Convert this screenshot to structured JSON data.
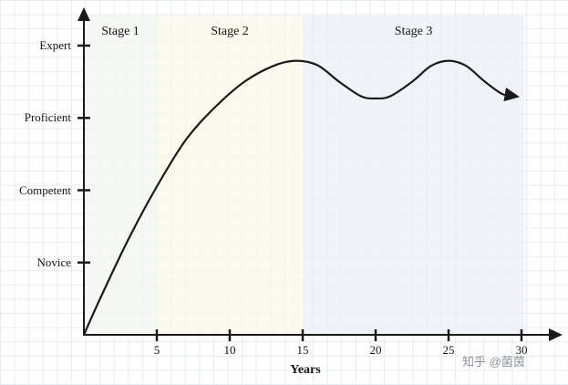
{
  "chart_data": {
    "type": "line",
    "xlabel": "Years",
    "ylabel": "",
    "xlim": [
      0,
      32.5
    ],
    "ylim": [
      0,
      4.5
    ],
    "grid": true,
    "legend": "none",
    "x_ticks": [
      5,
      10,
      15,
      20,
      25,
      30
    ],
    "y_level_labels": [
      {
        "label": "Novice",
        "value": 1
      },
      {
        "label": "Competent",
        "value": 2
      },
      {
        "label": "Proficient",
        "value": 3
      },
      {
        "label": "Expert",
        "value": 4
      }
    ],
    "stages": [
      {
        "label": "Stage 1",
        "x_start": 0,
        "x_end": 5,
        "fill": "#f2f7ee"
      },
      {
        "label": "Stage 2",
        "x_start": 5,
        "x_end": 15,
        "fill": "#fdf7e8"
      },
      {
        "label": "Stage 3",
        "x_start": 15,
        "x_end": 30.2,
        "fill": "#eaeff8"
      }
    ],
    "series": [
      {
        "name": "skill-growth-curve",
        "points": [
          [
            0,
            0
          ],
          [
            1,
            0.45
          ],
          [
            3,
            1.3
          ],
          [
            5,
            2.05
          ],
          [
            7,
            2.7
          ],
          [
            9,
            3.15
          ],
          [
            11,
            3.5
          ],
          [
            13,
            3.72
          ],
          [
            14.5,
            3.79
          ],
          [
            16,
            3.73
          ],
          [
            17.5,
            3.5
          ],
          [
            19,
            3.3
          ],
          [
            20,
            3.27
          ],
          [
            21,
            3.3
          ],
          [
            22.5,
            3.5
          ],
          [
            23.8,
            3.72
          ],
          [
            25,
            3.79
          ],
          [
            26.2,
            3.72
          ],
          [
            27.5,
            3.5
          ],
          [
            28.7,
            3.33
          ],
          [
            29.6,
            3.3
          ]
        ]
      }
    ],
    "line_color": "#1a1a1a",
    "axis_color": "#1a1a1a",
    "watermark": "知乎 @菌茵"
  }
}
